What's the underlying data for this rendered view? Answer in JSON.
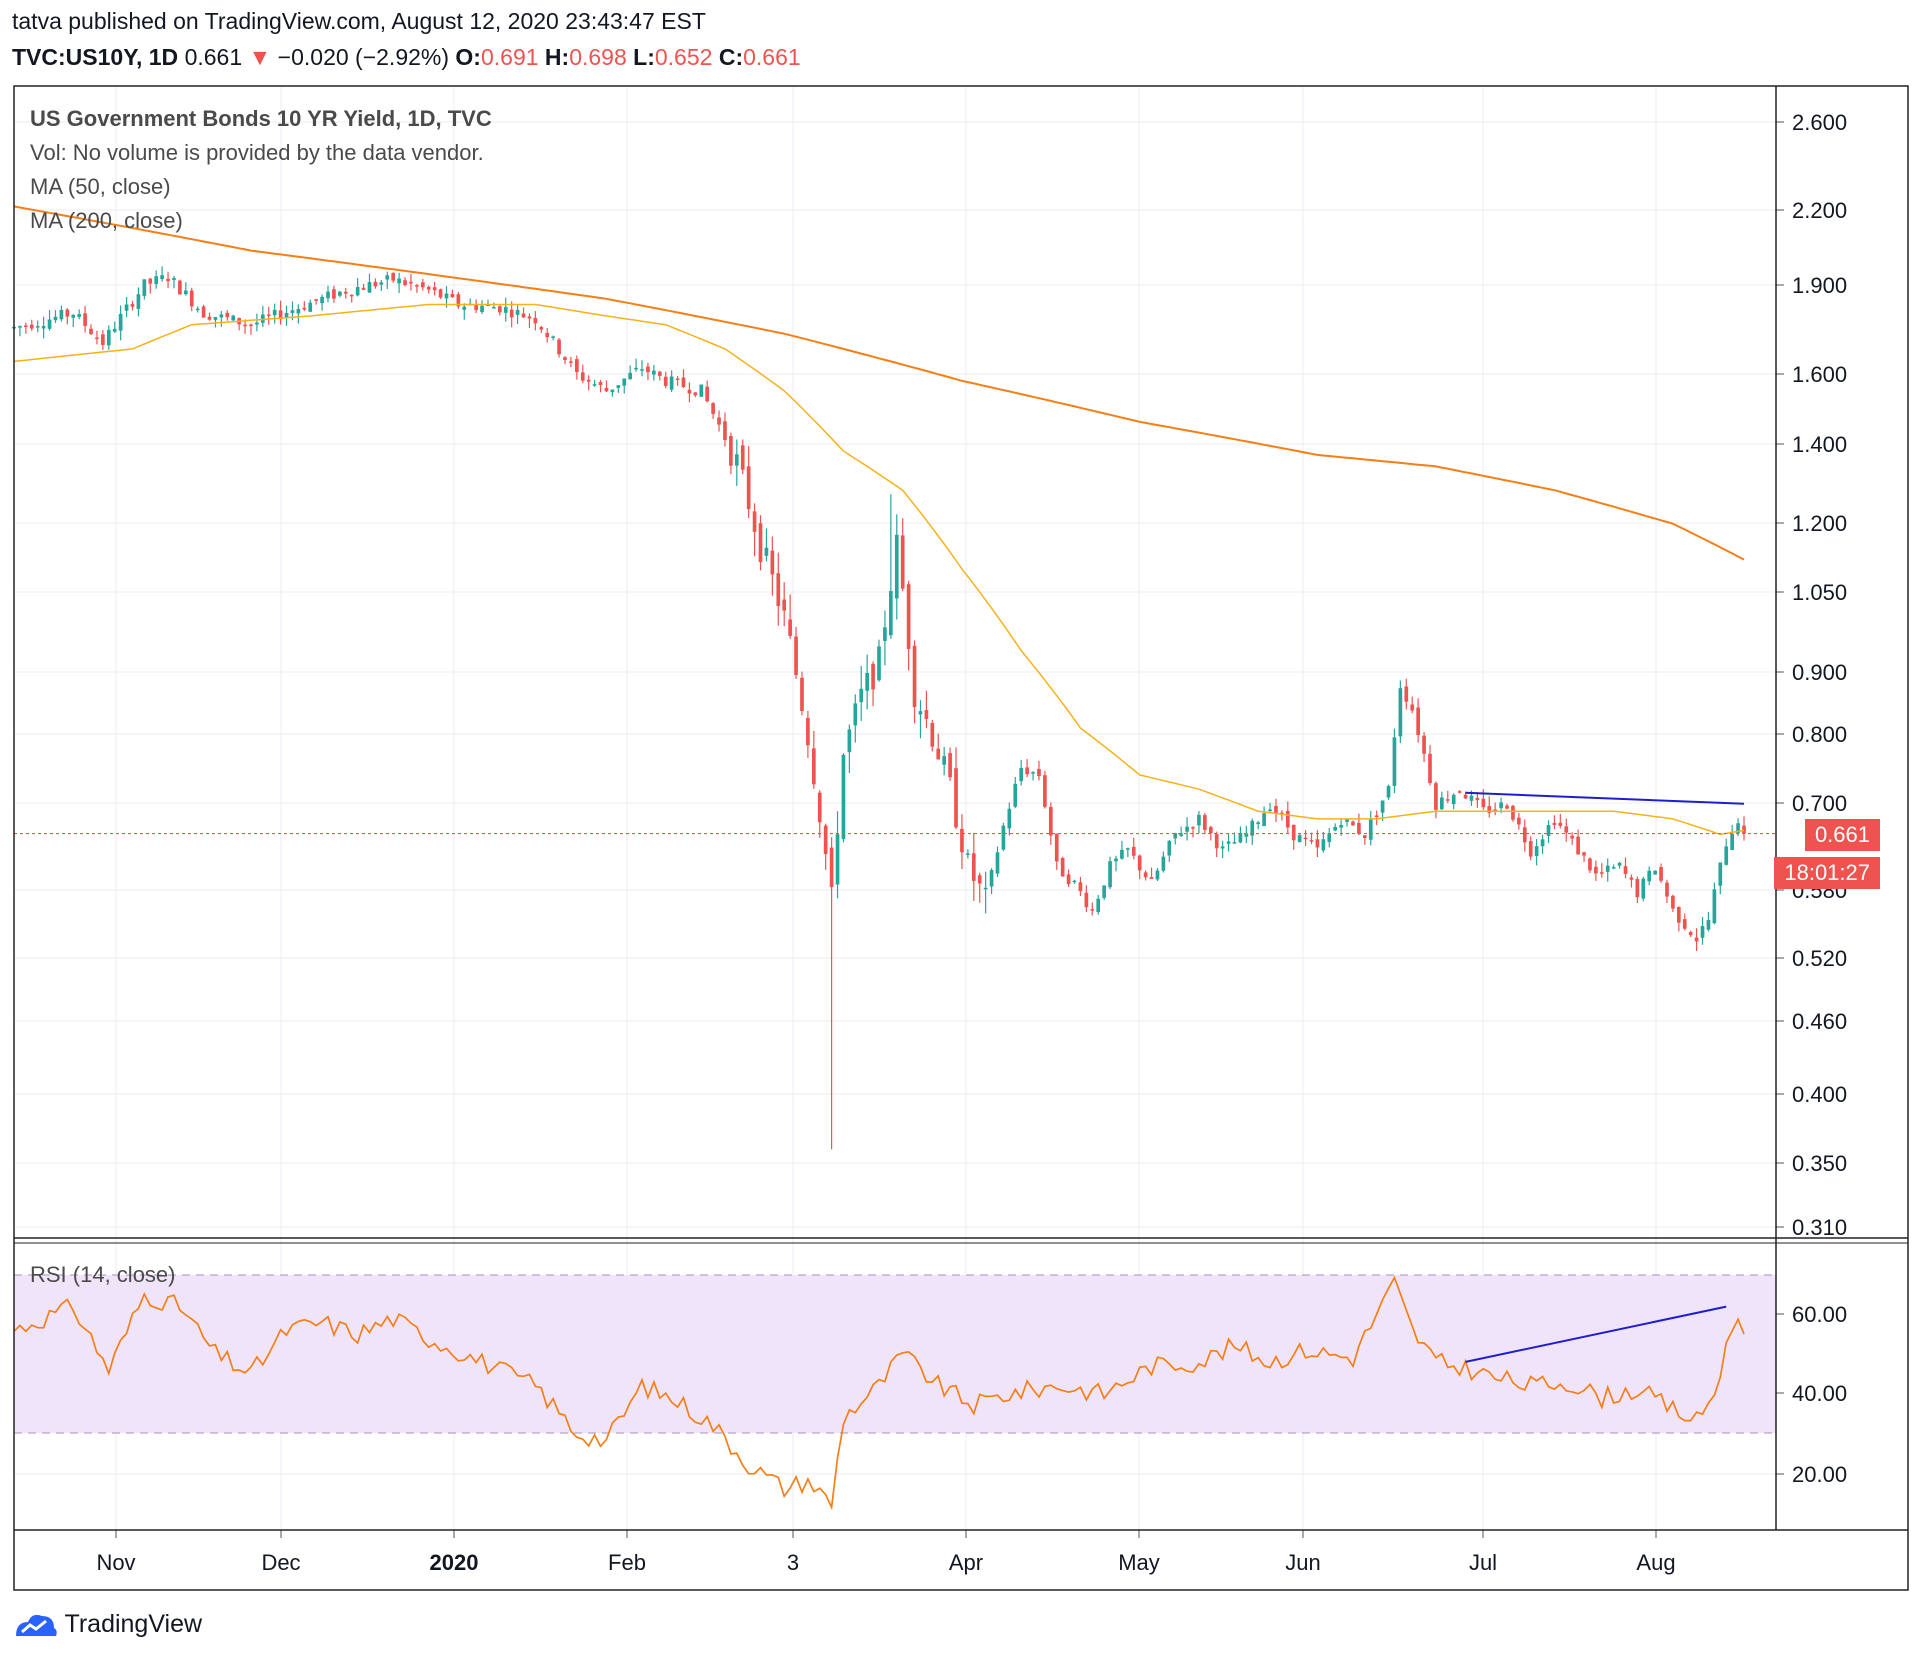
{
  "header": {
    "line1": "tatva published on TradingView.com, August 12, 2020 23:43:47 EST",
    "symbol": "TVC:US10Y, 1D",
    "last": "0.661",
    "change": "−0.020 (−2.92%)",
    "o_label": "O:",
    "o": "0.691",
    "h_label": "H:",
    "h": "0.698",
    "l_label": "L:",
    "l": "0.652",
    "c_label": "C:",
    "c": "0.661"
  },
  "legend": {
    "title": "US Government Bonds 10 YR Yield, 1D, TVC",
    "vol": "Vol: No volume is provided by the data vendor.",
    "ma50": "MA (50, close)",
    "ma200": "MA (200, close)",
    "rsi": "RSI (14, close)"
  },
  "tags": {
    "price": "0.661",
    "countdown": "18:01:27"
  },
  "footer": {
    "brand": "TradingView"
  },
  "colors": {
    "up": "#26a69a",
    "down": "#ef5350",
    "ma50": "#f6b21b",
    "ma200": "#f57f17",
    "rsi": "#f57f17",
    "trend": "#1e1ecf",
    "rsi_band": "#f0e4fb"
  },
  "chart_data": {
    "type": "candlestick",
    "y_scale": "log",
    "y_ticks": [
      "2.600",
      "2.200",
      "1.900",
      "1.600",
      "1.400",
      "1.200",
      "1.050",
      "0.900",
      "0.800",
      "0.700",
      "0.580",
      "0.520",
      "0.460",
      "0.400",
      "0.350",
      "0.310"
    ],
    "x_ticks": [
      "Nov",
      "Dec",
      "2020",
      "Feb",
      "3",
      "Apr",
      "May",
      "Jun",
      "Jul",
      "Aug"
    ],
    "last_price": 0.661,
    "anchors": [
      {
        "t": 0,
        "v": 1.75
      },
      {
        "t": 10,
        "v": 1.8
      },
      {
        "t": 15,
        "v": 1.7
      },
      {
        "t": 22,
        "v": 1.9
      },
      {
        "t": 26,
        "v": 1.93
      },
      {
        "t": 32,
        "v": 1.8
      },
      {
        "t": 40,
        "v": 1.76
      },
      {
        "t": 48,
        "v": 1.82
      },
      {
        "t": 56,
        "v": 1.88
      },
      {
        "t": 64,
        "v": 1.92
      },
      {
        "t": 70,
        "v": 1.88
      },
      {
        "t": 75,
        "v": 1.83
      },
      {
        "t": 82,
        "v": 1.82
      },
      {
        "t": 88,
        "v": 1.78
      },
      {
        "t": 95,
        "v": 1.6
      },
      {
        "t": 100,
        "v": 1.55
      },
      {
        "t": 106,
        "v": 1.62
      },
      {
        "t": 110,
        "v": 1.58
      },
      {
        "t": 116,
        "v": 1.55
      },
      {
        "t": 122,
        "v": 1.35
      },
      {
        "t": 126,
        "v": 1.15
      },
      {
        "t": 130,
        "v": 1.0
      },
      {
        "t": 134,
        "v": 0.8
      },
      {
        "t": 138,
        "v": 0.58
      },
      {
        "t": 140,
        "v": 0.77
      },
      {
        "t": 143,
        "v": 0.86
      },
      {
        "t": 146,
        "v": 0.92
      },
      {
        "t": 149,
        "v": 1.15
      },
      {
        "t": 152,
        "v": 0.87
      },
      {
        "t": 155,
        "v": 0.8
      },
      {
        "t": 158,
        "v": 0.72
      },
      {
        "t": 161,
        "v": 0.62
      },
      {
        "t": 164,
        "v": 0.58
      },
      {
        "t": 167,
        "v": 0.67
      },
      {
        "t": 170,
        "v": 0.75
      },
      {
        "t": 173,
        "v": 0.74
      },
      {
        "t": 176,
        "v": 0.62
      },
      {
        "t": 179,
        "v": 0.6
      },
      {
        "t": 182,
        "v": 0.57
      },
      {
        "t": 185,
        "v": 0.62
      },
      {
        "t": 188,
        "v": 0.64
      },
      {
        "t": 192,
        "v": 0.6
      },
      {
        "t": 196,
        "v": 0.66
      },
      {
        "t": 200,
        "v": 0.68
      },
      {
        "t": 204,
        "v": 0.64
      },
      {
        "t": 208,
        "v": 0.66
      },
      {
        "t": 212,
        "v": 0.7
      },
      {
        "t": 216,
        "v": 0.66
      },
      {
        "t": 220,
        "v": 0.64
      },
      {
        "t": 224,
        "v": 0.68
      },
      {
        "t": 228,
        "v": 0.66
      },
      {
        "t": 232,
        "v": 0.72
      },
      {
        "t": 234,
        "v": 0.88
      },
      {
        "t": 236,
        "v": 0.84
      },
      {
        "t": 240,
        "v": 0.7
      },
      {
        "t": 244,
        "v": 0.72
      },
      {
        "t": 248,
        "v": 0.69
      },
      {
        "t": 252,
        "v": 0.7
      },
      {
        "t": 256,
        "v": 0.64
      },
      {
        "t": 260,
        "v": 0.68
      },
      {
        "t": 263,
        "v": 0.65
      },
      {
        "t": 267,
        "v": 0.61
      },
      {
        "t": 271,
        "v": 0.62
      },
      {
        "t": 274,
        "v": 0.59
      },
      {
        "t": 277,
        "v": 0.62
      },
      {
        "t": 280,
        "v": 0.57
      },
      {
        "t": 284,
        "v": 0.54
      },
      {
        "t": 286,
        "v": 0.56
      },
      {
        "t": 289,
        "v": 0.65
      },
      {
        "t": 291,
        "v": 0.68
      },
      {
        "t": 292,
        "v": 0.661
      }
    ],
    "ma50": [
      {
        "t": 0,
        "v": 1.64
      },
      {
        "t": 20,
        "v": 1.68
      },
      {
        "t": 30,
        "v": 1.76
      },
      {
        "t": 50,
        "v": 1.79
      },
      {
        "t": 70,
        "v": 1.83
      },
      {
        "t": 88,
        "v": 1.83
      },
      {
        "t": 100,
        "v": 1.79
      },
      {
        "t": 110,
        "v": 1.76
      },
      {
        "t": 120,
        "v": 1.68
      },
      {
        "t": 130,
        "v": 1.55
      },
      {
        "t": 140,
        "v": 1.38
      },
      {
        "t": 150,
        "v": 1.28
      },
      {
        "t": 160,
        "v": 1.1
      },
      {
        "t": 170,
        "v": 0.94
      },
      {
        "t": 180,
        "v": 0.81
      },
      {
        "t": 190,
        "v": 0.74
      },
      {
        "t": 200,
        "v": 0.72
      },
      {
        "t": 210,
        "v": 0.69
      },
      {
        "t": 220,
        "v": 0.68
      },
      {
        "t": 230,
        "v": 0.68
      },
      {
        "t": 240,
        "v": 0.69
      },
      {
        "t": 250,
        "v": 0.69
      },
      {
        "t": 260,
        "v": 0.69
      },
      {
        "t": 270,
        "v": 0.69
      },
      {
        "t": 280,
        "v": 0.68
      },
      {
        "t": 288,
        "v": 0.66
      },
      {
        "t": 292,
        "v": 0.665
      }
    ],
    "ma200": [
      {
        "t": 0,
        "v": 2.21
      },
      {
        "t": 40,
        "v": 2.03
      },
      {
        "t": 70,
        "v": 1.94
      },
      {
        "t": 100,
        "v": 1.85
      },
      {
        "t": 130,
        "v": 1.73
      },
      {
        "t": 160,
        "v": 1.58
      },
      {
        "t": 190,
        "v": 1.46
      },
      {
        "t": 220,
        "v": 1.37
      },
      {
        "t": 240,
        "v": 1.34
      },
      {
        "t": 260,
        "v": 1.28
      },
      {
        "t": 280,
        "v": 1.2
      },
      {
        "t": 292,
        "v": 1.12
      }
    ],
    "trendline_price": [
      {
        "t": 245,
        "v": 0.715
      },
      {
        "t": 292,
        "v": 0.7
      }
    ],
    "rsi": {
      "range": [
        0,
        100
      ],
      "bands": [
        30,
        70
      ],
      "y_ticks": [
        "60.00",
        "40.00",
        "20.00"
      ],
      "anchors": [
        {
          "t": 0,
          "v": 56
        },
        {
          "t": 10,
          "v": 62
        },
        {
          "t": 16,
          "v": 46
        },
        {
          "t": 22,
          "v": 65
        },
        {
          "t": 28,
          "v": 62
        },
        {
          "t": 34,
          "v": 50
        },
        {
          "t": 40,
          "v": 45
        },
        {
          "t": 46,
          "v": 56
        },
        {
          "t": 52,
          "v": 58
        },
        {
          "t": 58,
          "v": 55
        },
        {
          "t": 64,
          "v": 59
        },
        {
          "t": 70,
          "v": 54
        },
        {
          "t": 76,
          "v": 50
        },
        {
          "t": 82,
          "v": 46
        },
        {
          "t": 88,
          "v": 42
        },
        {
          "t": 95,
          "v": 30
        },
        {
          "t": 100,
          "v": 28
        },
        {
          "t": 106,
          "v": 42
        },
        {
          "t": 112,
          "v": 38
        },
        {
          "t": 118,
          "v": 32
        },
        {
          "t": 124,
          "v": 22
        },
        {
          "t": 130,
          "v": 16
        },
        {
          "t": 134,
          "v": 18
        },
        {
          "t": 138,
          "v": 12
        },
        {
          "t": 140,
          "v": 34
        },
        {
          "t": 146,
          "v": 42
        },
        {
          "t": 150,
          "v": 50
        },
        {
          "t": 156,
          "v": 42
        },
        {
          "t": 162,
          "v": 37
        },
        {
          "t": 168,
          "v": 40
        },
        {
          "t": 176,
          "v": 42
        },
        {
          "t": 184,
          "v": 40
        },
        {
          "t": 192,
          "v": 47
        },
        {
          "t": 200,
          "v": 48
        },
        {
          "t": 206,
          "v": 52
        },
        {
          "t": 212,
          "v": 48
        },
        {
          "t": 218,
          "v": 51
        },
        {
          "t": 226,
          "v": 49
        },
        {
          "t": 230,
          "v": 60
        },
        {
          "t": 233,
          "v": 68
        },
        {
          "t": 236,
          "v": 56
        },
        {
          "t": 240,
          "v": 48
        },
        {
          "t": 246,
          "v": 46
        },
        {
          "t": 250,
          "v": 44
        },
        {
          "t": 256,
          "v": 42
        },
        {
          "t": 262,
          "v": 43
        },
        {
          "t": 268,
          "v": 39
        },
        {
          "t": 274,
          "v": 41
        },
        {
          "t": 280,
          "v": 36
        },
        {
          "t": 284,
          "v": 33
        },
        {
          "t": 287,
          "v": 40
        },
        {
          "t": 290,
          "v": 58
        },
        {
          "t": 292,
          "v": 56
        }
      ],
      "trendline": [
        {
          "t": 245,
          "v": 48
        },
        {
          "t": 289,
          "v": 62
        }
      ]
    }
  }
}
